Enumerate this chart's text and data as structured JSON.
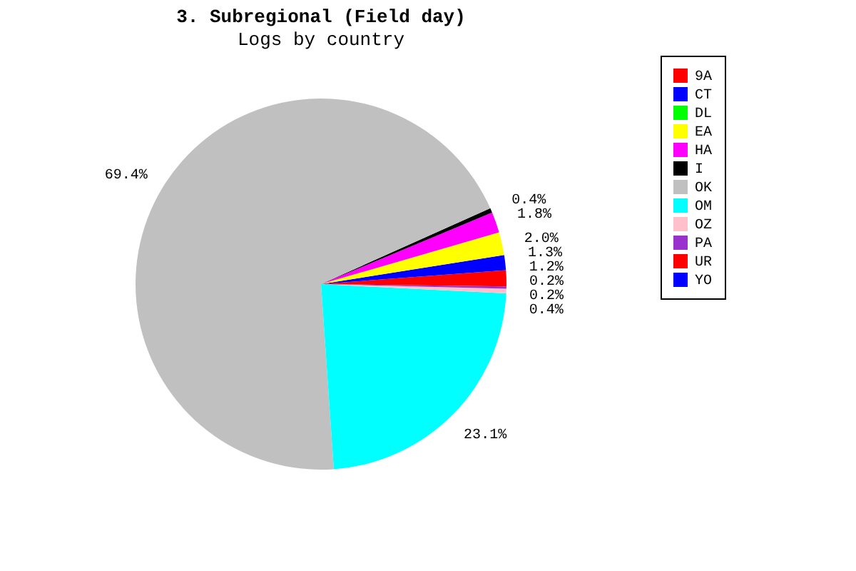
{
  "chart_data": {
    "type": "pie",
    "title": "3. Subregional (Field day)",
    "subtitle": "Logs by country",
    "categories": [
      "9A",
      "CT",
      "DL",
      "EA",
      "HA",
      "I",
      "OK",
      "OM",
      "OZ",
      "PA",
      "UR",
      "YO"
    ],
    "values": [
      1.2,
      1.3,
      0,
      2.0,
      1.8,
      0.4,
      69.4,
      23.1,
      0.4,
      0.2,
      0.2,
      0
    ],
    "colors": [
      "#ff0000",
      "#0000ff",
      "#00ff00",
      "#ffff00",
      "#ff00ff",
      "#000000",
      "#c0c0c0",
      "#00ffff",
      "#ffc0cb",
      "#9932cc",
      "#ff0000",
      "#0000ff"
    ],
    "value_labels": [
      "1.2%",
      "1.3%",
      null,
      "2.0%",
      "1.8%",
      "0.4%",
      "69.4%",
      "23.1%",
      "0.4%",
      "0.2%",
      "0.2%",
      null
    ],
    "legend": "right"
  }
}
